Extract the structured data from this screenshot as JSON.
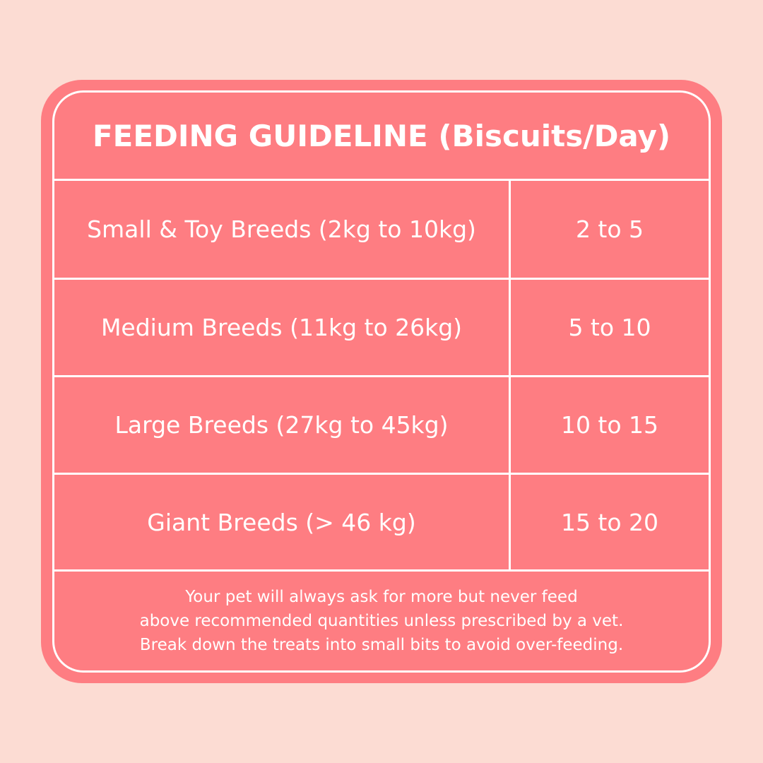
{
  "table": {
    "title": "FEEDING GUIDELINE (Biscuits/Day)",
    "rows": [
      [
        "Small & Toy Breeds (2kg to 10kg)",
        "2 to 5"
      ],
      [
        "Medium Breeds (11kg to 26kg)",
        "5 to 10"
      ],
      [
        "Large Breeds (27kg to 45kg)",
        "10 to 15"
      ],
      [
        "Giant Breeds (> 46 kg)",
        "15 to 20"
      ]
    ],
    "note": [
      "Your pet will always ask for more but never feed",
      "above recommended quantities unless prescribed by a vet.",
      "Break down the treats into small bits to avoid over-feeding."
    ]
  }
}
